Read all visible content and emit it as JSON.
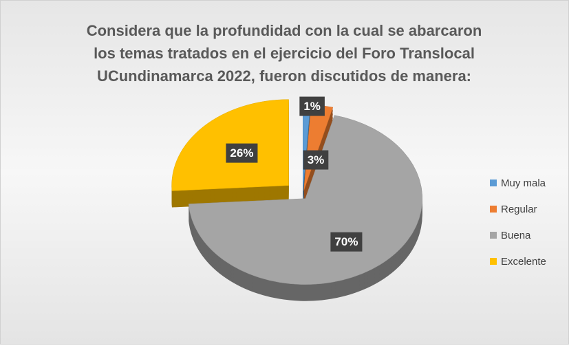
{
  "chart_data": {
    "type": "pie",
    "title": [
      "Considera que la profundidad con la cual se abarcaron",
      "los temas tratados en el ejercicio del Foro Translocal",
      "UCundinamarca  2022, fueron discutidos de manera:"
    ],
    "categories": [
      "Muy mala",
      "Regular",
      "Buena",
      "Excelente"
    ],
    "values": [
      1,
      3,
      70,
      26
    ],
    "value_labels": [
      "1%",
      "3%",
      "70%",
      "26%"
    ],
    "colors": [
      "#5b9bd5",
      "#ed7d31",
      "#a5a5a5",
      "#ffc000"
    ],
    "legend": "right"
  }
}
